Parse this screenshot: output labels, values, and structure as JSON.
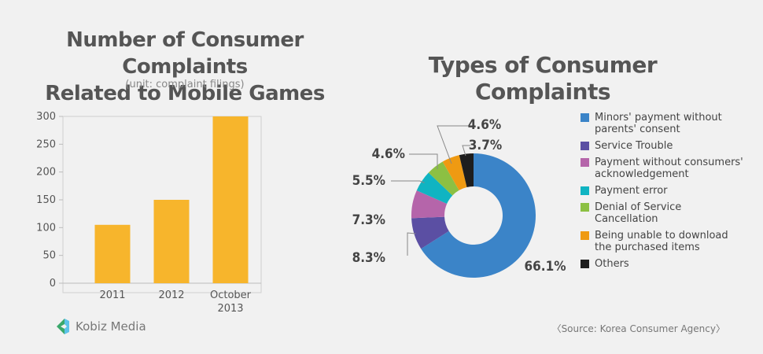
{
  "bar_chart": {
    "title_line1": "Number of Consumer Complaints",
    "title_line2": "Related to Mobile Games",
    "unit": "(unit: complaint filings)"
  },
  "pie_chart": {
    "title": "Types of Consumer Complaints"
  },
  "footer": {
    "logo_text": "Kobiz Media",
    "source": "〈Source: Korea Consumer Agency〉"
  },
  "chart_data": [
    {
      "type": "bar",
      "title": "Number of Consumer Complaints Related to Mobile Games",
      "subtitle": "(unit: complaint filings)",
      "categories": [
        "2011",
        "2012",
        "October 2013"
      ],
      "category_lines": [
        [
          "2011"
        ],
        [
          "2012"
        ],
        [
          "October",
          "2013"
        ]
      ],
      "values": [
        105,
        150,
        300
      ],
      "ylim": [
        0,
        300
      ],
      "yticks": [
        0,
        50,
        100,
        150,
        200,
        250,
        300
      ],
      "grid": false,
      "color": "#f7b52c"
    },
    {
      "type": "pie",
      "donut": true,
      "title": "Types of Consumer Complaints",
      "legend_position": "right",
      "slices": [
        {
          "label": "Minors' payment without parents' consent",
          "legend_lines": [
            "Minors' payment without",
            "parents' consent"
          ],
          "value": 66.1,
          "display": "66.1%",
          "color": "#3b84c8"
        },
        {
          "label": "Service Trouble",
          "legend_lines": [
            "Service Trouble"
          ],
          "value": 8.3,
          "display": "8.3%",
          "color": "#5b4fa3"
        },
        {
          "label": "Payment without consumers' acknowledgement",
          "legend_lines": [
            "Payment without consumers'",
            "acknowledgement"
          ],
          "value": 7.3,
          "display": "7.3%",
          "color": "#b565aa"
        },
        {
          "label": "Payment error",
          "legend_lines": [
            "Payment error"
          ],
          "value": 5.5,
          "display": "5.5%",
          "color": "#10b4c2"
        },
        {
          "label": "Denial of Service Cancellation",
          "legend_lines": [
            "Denial of Service",
            "Cancellation"
          ],
          "value": 4.6,
          "display": "4.6%",
          "color": "#8cc043"
        },
        {
          "label": "Being unable to download the purchased items",
          "legend_lines": [
            "Being unable to download",
            "the purchased items"
          ],
          "value": 4.6,
          "display": "4.6%",
          "color": "#ef9a12"
        },
        {
          "label": "Others",
          "legend_lines": [
            "Others"
          ],
          "value": 3.7,
          "display": "3.7%",
          "color": "#1e1e1e"
        }
      ]
    }
  ]
}
